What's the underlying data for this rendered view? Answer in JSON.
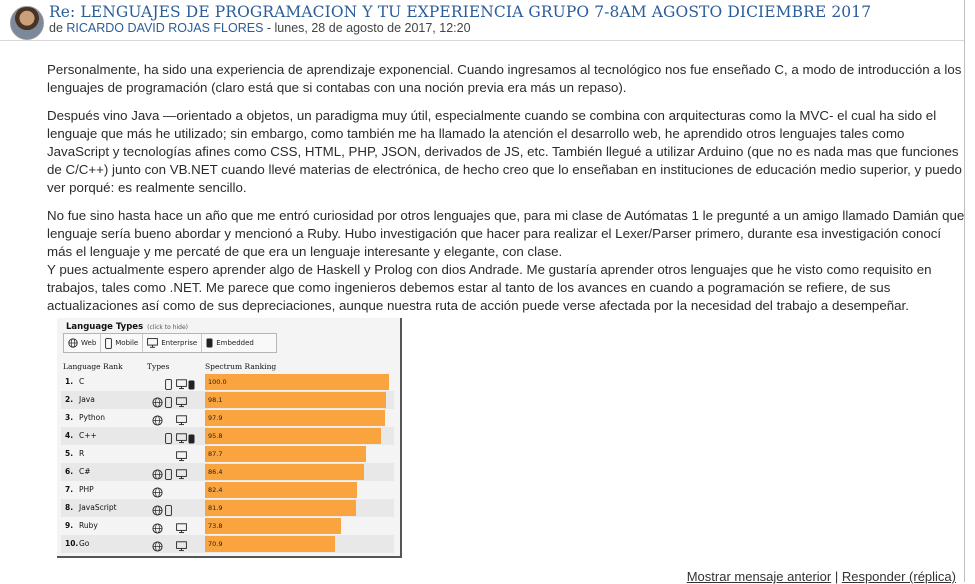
{
  "post": {
    "title": "Re: LENGUAJES DE PROGRAMACION Y TU EXPERIENCIA GRUPO 7-8AM AGOSTO DICIEMBRE 2017",
    "by_prefix": "de ",
    "author": "RICARDO DAVID ROJAS FLORES",
    "date": " - lunes, 28 de agosto de 2017, 12:20",
    "paragraphs": [
      "Personalmente, ha sido una experiencia de aprendizaje exponencial.  Cuando ingresamos al tecnológico nos fue enseñado C, a modo de introducción a los lenguajes de programación (claro está que si contabas con una noción previa era más un repaso).",
      "Después vino Java  —orientado a objetos, un paradigma muy útil, especialmente cuando se combina con arquitecturas como la MVC- el cual ha sido el lenguaje que más he utilizado; sin embargo, como también me ha llamado la atención el desarrollo web, he aprendido otros lenguajes tales como JavaScript y tecnologías afines como CSS, HTML, PHP,  JSON, derivados de JS, etc.  También llegué a utilizar Arduino (que no es nada mas que funciones de C/C++) junto con VB.NET cuando llevé materias de electrónica, de hecho creo que lo enseñaban en instituciones de educación medio superior, y puedo ver porqué: es realmente sencillo.",
      "No fue sino hasta hace un año que me entró curiosidad por otros lenguajes que, para mi clase de Autómatas 1 le pregunté a un amigo llamado Damián que lenguaje sería bueno abordar y mencionó a Ruby. Hubo investigación que hacer para realizar el Lexer/Parser primero, durante esa investigación conocí más el lenguaje y me percaté de que era un lenguaje interesante y elegante, con clase.",
      "Y pues actualmente espero aprender algo de Haskell y Prolog con dios Andrade. Me gustaría aprender otros lenguajes que he visto como requisito en trabajos, tales como .NET. Me parece que como ingenieros debemos estar al tanto de los avances en cuando a pogramación se refiere, de sus actualizaciones así como de sus depreciaciones, aunque nuestra ruta de acción puede verse afectada por la necesidad del trabajo a desempeñar."
    ]
  },
  "figure": {
    "title": "Language Types",
    "hint": "(click to hide)",
    "filters": [
      "Web",
      "Mobile",
      "Enterprise",
      "Embedded"
    ],
    "col_rank": "Language Rank",
    "col_types": "Types",
    "col_spectrum": "Spectrum Ranking"
  },
  "chart_data": {
    "type": "bar",
    "title": "Language Types",
    "categories": [
      "C",
      "Java",
      "Python",
      "C++",
      "R",
      "C#",
      "PHP",
      "JavaScript",
      "Ruby",
      "Go"
    ],
    "ranks": [
      "1.",
      "2.",
      "3.",
      "4.",
      "5.",
      "6.",
      "7.",
      "8.",
      "9.",
      "10."
    ],
    "values": [
      100.0,
      98.1,
      97.9,
      95.8,
      87.7,
      86.4,
      82.4,
      81.9,
      73.8,
      70.9
    ],
    "value_labels": [
      "100.0",
      "98.1",
      "97.9",
      "95.8",
      "87.7",
      "86.4",
      "82.4",
      "81.9",
      "73.8",
      "70.9"
    ],
    "types": [
      [
        "mobile",
        "enterprise",
        "embedded"
      ],
      [
        "web",
        "mobile",
        "enterprise"
      ],
      [
        "web",
        "enterprise"
      ],
      [
        "mobile",
        "enterprise",
        "embedded"
      ],
      [
        "enterprise"
      ],
      [
        "web",
        "mobile",
        "enterprise"
      ],
      [
        "web"
      ],
      [
        "web",
        "mobile"
      ],
      [
        "web",
        "enterprise"
      ],
      [
        "web",
        "enterprise"
      ]
    ],
    "xlim": [
      0,
      100
    ],
    "bar_color": "#f9a43f"
  },
  "footer": {
    "prev_label": "Mostrar mensaje anterior",
    "separator": " | ",
    "reply_label": "Responder (réplica)"
  }
}
